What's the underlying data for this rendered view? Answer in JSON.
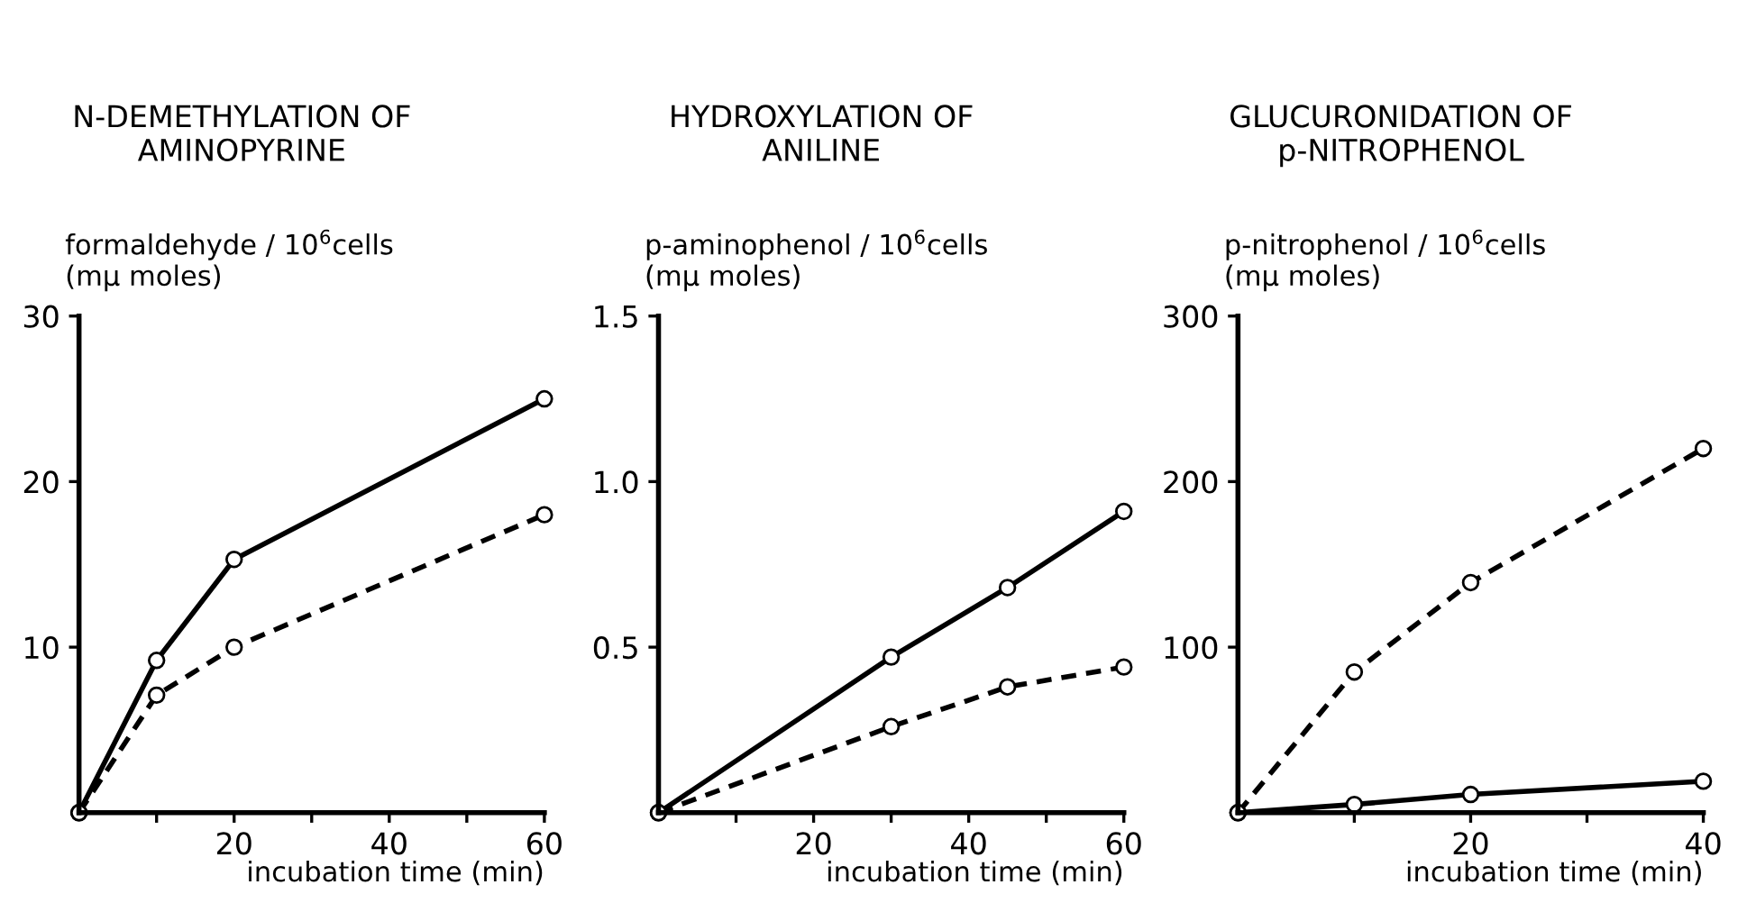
{
  "chart_data": [
    {
      "type": "line",
      "title": "N-DEMETHYLATION OF\nAMINOPYRINE",
      "ylabel": "formaldehyde / 10$^{6}$cells\n(mμ moles)",
      "xlabel": "incubation time (min)",
      "marker": "circle",
      "grid": false,
      "legend": false,
      "xlim": [
        0,
        60
      ],
      "xticks": [
        {
          "value": 10,
          "label": null
        },
        20,
        {
          "value": 30,
          "label": null
        },
        40,
        {
          "value": 50,
          "label": null
        },
        60
      ],
      "ylim": [
        0,
        30
      ],
      "yticks": [
        10,
        20,
        30
      ],
      "series": [
        {
          "color": "#000000",
          "line_style": "solid",
          "x": [
            0,
            10,
            20,
            60
          ],
          "values": [
            0,
            9.2,
            15.3,
            25
          ]
        },
        {
          "color": "#000000",
          "line_style": "dashed",
          "x": [
            0,
            10,
            20,
            60
          ],
          "values": [
            0,
            7.1,
            10,
            18
          ]
        }
      ]
    },
    {
      "type": "line",
      "title": "HYDROXYLATION OF\nANILINE",
      "ylabel": "p-aminophenol / 10$^{6}$cells\n(mμ moles)",
      "xlabel": "incubation time (min)",
      "marker": "circle",
      "grid": false,
      "legend": false,
      "xlim": [
        0,
        60
      ],
      "xticks": [
        {
          "value": 10,
          "label": null
        },
        20,
        {
          "value": 30,
          "label": null
        },
        40,
        {
          "value": 50,
          "label": null
        },
        60
      ],
      "ylim": [
        0,
        1.5
      ],
      "yticks": [
        0.5,
        {
          "value": 1.0,
          "label": "1.0"
        },
        1.5
      ],
      "series": [
        {
          "color": "#000000",
          "line_style": "solid",
          "x": [
            0,
            30,
            45,
            60
          ],
          "values": [
            0,
            0.47,
            0.68,
            0.91
          ]
        },
        {
          "color": "#000000",
          "line_style": "dashed",
          "x": [
            0,
            30,
            45,
            60
          ],
          "values": [
            0,
            0.26,
            0.38,
            0.44
          ]
        }
      ]
    },
    {
      "type": "line",
      "title": "GLUCURONIDATION OF\np-NITROPHENOL",
      "ylabel": "p-nitrophenol / 10$^{6}$cells\n(mμ moles)",
      "xlabel": "incubation time (min)",
      "marker": "circle",
      "grid": false,
      "legend": false,
      "xlim": [
        0,
        40
      ],
      "xticks": [
        {
          "value": 10,
          "label": null
        },
        20,
        {
          "value": 30,
          "label": null
        },
        40
      ],
      "ylim": [
        0,
        300
      ],
      "yticks": [
        100,
        200,
        300
      ],
      "series": [
        {
          "color": "#000000",
          "line_style": "dashed",
          "x": [
            0,
            10,
            20,
            40
          ],
          "values": [
            0,
            85,
            139,
            220
          ]
        },
        {
          "color": "#000000",
          "line_style": "solid",
          "x": [
            0,
            10,
            20,
            40
          ],
          "values": [
            0,
            5,
            11,
            19
          ]
        }
      ]
    }
  ]
}
